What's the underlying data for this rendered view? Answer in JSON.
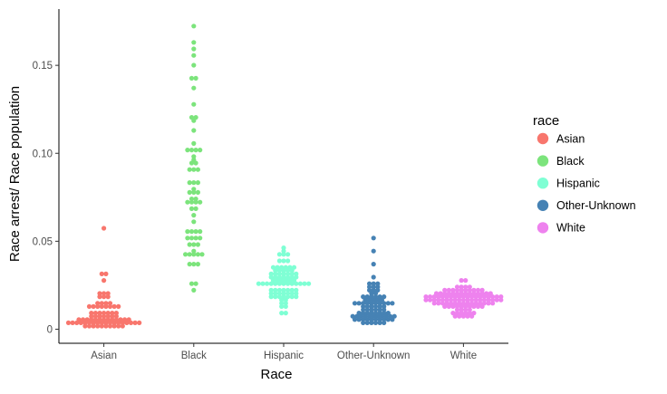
{
  "chart_data": {
    "type": "scatter",
    "subtype": "beeswarm",
    "title": "",
    "xlabel": "Race",
    "ylabel": "Race arrest/ Race population",
    "categories": [
      "Asian",
      "Black",
      "Hispanic",
      "Other-Unknown",
      "White"
    ],
    "ylim": [
      -0.008,
      0.182
    ],
    "yticks": [
      0,
      0.05,
      0.1,
      0.15
    ],
    "ytick_labels": [
      "0",
      "0.05",
      "0.10",
      "0.15"
    ],
    "grid": false,
    "legend": {
      "title": "race",
      "position": "right"
    },
    "series": [
      {
        "name": "Asian",
        "color": "#F8766D",
        "values": [
          0.057,
          0.031,
          0.031,
          0.027,
          0.021,
          0.021,
          0.021,
          0.018,
          0.018,
          0.018,
          0.015,
          0.015,
          0.015,
          0.015,
          0.012,
          0.012,
          0.012,
          0.012,
          0.012,
          0.012,
          0.012,
          0.012,
          0.01,
          0.01,
          0.01,
          0.01,
          0.01,
          0.01,
          0.01,
          0.008,
          0.008,
          0.008,
          0.008,
          0.008,
          0.008,
          0.008,
          0.006,
          0.006,
          0.006,
          0.006,
          0.006,
          0.006,
          0.006,
          0.006,
          0.006,
          0.006,
          0.006,
          0.006,
          0.006,
          0.004,
          0.004,
          0.004,
          0.004,
          0.004,
          0.004,
          0.004,
          0.004,
          0.004,
          0.004,
          0.004,
          0.003,
          0.003,
          0.003,
          0.003,
          0.003,
          0.003,
          0.003,
          0.002,
          0.002,
          0.002,
          0.002,
          0.002,
          0.002,
          0.001,
          0.001,
          0.001,
          0.001
        ]
      },
      {
        "name": "Black",
        "color": "#7CE47C",
        "values": [
          0.172,
          0.163,
          0.16,
          0.156,
          0.15,
          0.143,
          0.143,
          0.138,
          0.127,
          0.12,
          0.12,
          0.119,
          0.113,
          0.106,
          0.102,
          0.102,
          0.102,
          0.101,
          0.099,
          0.096,
          0.094,
          0.094,
          0.09,
          0.09,
          0.09,
          0.083,
          0.083,
          0.083,
          0.08,
          0.077,
          0.077,
          0.077,
          0.074,
          0.074,
          0.072,
          0.072,
          0.072,
          0.072,
          0.069,
          0.068,
          0.064,
          0.062,
          0.056,
          0.056,
          0.056,
          0.055,
          0.052,
          0.052,
          0.052,
          0.052,
          0.048,
          0.048,
          0.048,
          0.044,
          0.042,
          0.042,
          0.042,
          0.042,
          0.042,
          0.037,
          0.037,
          0.037,
          0.026,
          0.026,
          0.023
        ]
      },
      {
        "name": "Hispanic",
        "color": "#7FFFD4",
        "values": [
          0.047,
          0.044,
          0.042,
          0.042,
          0.042,
          0.038,
          0.038,
          0.038,
          0.035,
          0.035,
          0.035,
          0.035,
          0.035,
          0.035,
          0.033,
          0.033,
          0.033,
          0.033,
          0.033,
          0.031,
          0.031,
          0.031,
          0.031,
          0.031,
          0.031,
          0.031,
          0.029,
          0.029,
          0.029,
          0.029,
          0.029,
          0.029,
          0.029,
          0.028,
          0.028,
          0.028,
          0.028,
          0.028,
          0.028,
          0.026,
          0.026,
          0.026,
          0.026,
          0.026,
          0.026,
          0.026,
          0.026,
          0.025,
          0.025,
          0.025,
          0.025,
          0.025,
          0.023,
          0.023,
          0.023,
          0.023,
          0.023,
          0.023,
          0.023,
          0.021,
          0.021,
          0.021,
          0.02,
          0.02,
          0.02,
          0.02,
          0.018,
          0.018,
          0.018,
          0.018,
          0.018,
          0.018,
          0.018,
          0.016,
          0.016,
          0.015,
          0.015,
          0.012,
          0.012,
          0.009,
          0.009
        ]
      },
      {
        "name": "Other-Unknown",
        "color": "#4682B4",
        "values": [
          0.052,
          0.045,
          0.037,
          0.03,
          0.026,
          0.026,
          0.026,
          0.024,
          0.024,
          0.024,
          0.022,
          0.022,
          0.022,
          0.02,
          0.02,
          0.018,
          0.018,
          0.018,
          0.018,
          0.018,
          0.018,
          0.017,
          0.017,
          0.017,
          0.017,
          0.017,
          0.015,
          0.015,
          0.015,
          0.015,
          0.015,
          0.014,
          0.014,
          0.014,
          0.014,
          0.014,
          0.012,
          0.012,
          0.012,
          0.012,
          0.012,
          0.012,
          0.011,
          0.011,
          0.011,
          0.011,
          0.011,
          0.011,
          0.01,
          0.01,
          0.01,
          0.01,
          0.01,
          0.01,
          0.01,
          0.01,
          0.008,
          0.008,
          0.008,
          0.008,
          0.008,
          0.008,
          0.007,
          0.007,
          0.007,
          0.007,
          0.007,
          0.006,
          0.006,
          0.006,
          0.006,
          0.006,
          0.006,
          0.005,
          0.005,
          0.005,
          0.005,
          0.004,
          0.004,
          0.004,
          0.003,
          0.003,
          0.003
        ]
      },
      {
        "name": "White",
        "color": "#EE82EE",
        "values": [
          0.027,
          0.027,
          0.024,
          0.024,
          0.024,
          0.024,
          0.023,
          0.023,
          0.023,
          0.023,
          0.022,
          0.022,
          0.022,
          0.022,
          0.022,
          0.022,
          0.021,
          0.021,
          0.021,
          0.021,
          0.021,
          0.021,
          0.021,
          0.02,
          0.02,
          0.02,
          0.02,
          0.02,
          0.02,
          0.02,
          0.019,
          0.019,
          0.019,
          0.019,
          0.019,
          0.019,
          0.019,
          0.019,
          0.018,
          0.018,
          0.018,
          0.018,
          0.018,
          0.018,
          0.018,
          0.018,
          0.018,
          0.018,
          0.018,
          0.017,
          0.017,
          0.017,
          0.017,
          0.017,
          0.017,
          0.017,
          0.017,
          0.017,
          0.017,
          0.016,
          0.016,
          0.016,
          0.016,
          0.016,
          0.016,
          0.016,
          0.016,
          0.016,
          0.015,
          0.015,
          0.015,
          0.015,
          0.015,
          0.015,
          0.015,
          0.015,
          0.014,
          0.014,
          0.014,
          0.014,
          0.014,
          0.014,
          0.014,
          0.013,
          0.013,
          0.013,
          0.013,
          0.013,
          0.013,
          0.012,
          0.012,
          0.012,
          0.012,
          0.011,
          0.011,
          0.011,
          0.011,
          0.01,
          0.01,
          0.01,
          0.009,
          0.009,
          0.009,
          0.008,
          0.008,
          0.008,
          0.007,
          0.007
        ]
      }
    ]
  }
}
